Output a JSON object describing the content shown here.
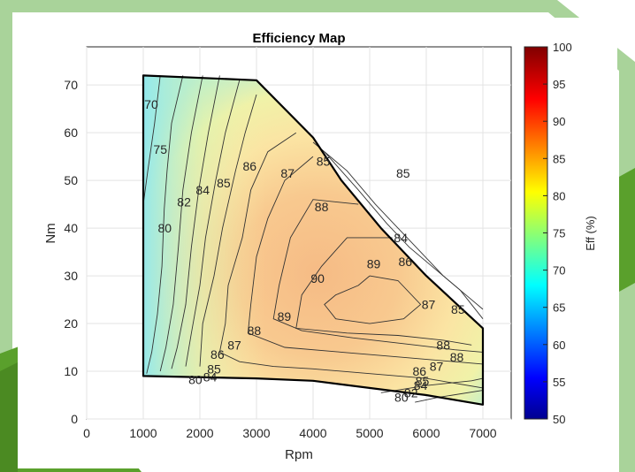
{
  "colors": {
    "frame_green": "#a9d39a",
    "accent_green": "#5aa02c",
    "boundary": "#000000",
    "contour": "#333333"
  },
  "chart_data": {
    "type": "heatmap",
    "title": "Efficiency Map",
    "xlabel": "Rpm",
    "ylabel": "Nm",
    "xlim": [
      0,
      7500
    ],
    "ylim": [
      0,
      78
    ],
    "xticks": [
      "0",
      "1000",
      "2000",
      "3000",
      "4000",
      "5000",
      "6000",
      "7000"
    ],
    "yticks": [
      "0",
      "10",
      "20",
      "30",
      "40",
      "50",
      "60",
      "70"
    ],
    "grid": true,
    "colorbar": {
      "label": "Eff (%)",
      "range": [
        50,
        100
      ],
      "ticks": [
        "50",
        "55",
        "60",
        "65",
        "70",
        "75",
        "80",
        "85",
        "90",
        "95",
        "100"
      ]
    },
    "operating_boundary": [
      [
        1000,
        72
      ],
      [
        3000,
        71
      ],
      [
        4000,
        59
      ],
      [
        4500,
        50
      ],
      [
        5200,
        40
      ],
      [
        6000,
        30
      ],
      [
        7000,
        19
      ],
      [
        7000,
        3
      ],
      [
        6000,
        5
      ],
      [
        4000,
        8
      ],
      [
        3000,
        8.5
      ],
      [
        1000,
        9
      ]
    ],
    "contour_labels": [
      {
        "text": "70",
        "x": 1140,
        "y": 66
      },
      {
        "text": "75",
        "x": 1300,
        "y": 56.5
      },
      {
        "text": "80",
        "x": 1380,
        "y": 40
      },
      {
        "text": "82",
        "x": 1720,
        "y": 45.5
      },
      {
        "text": "84",
        "x": 2050,
        "y": 48
      },
      {
        "text": "85",
        "x": 2420,
        "y": 49.5
      },
      {
        "text": "86",
        "x": 2880,
        "y": 53
      },
      {
        "text": "87",
        "x": 3550,
        "y": 51.5
      },
      {
        "text": "85",
        "x": 4180,
        "y": 54
      },
      {
        "text": "85",
        "x": 5590,
        "y": 51.5
      },
      {
        "text": "88",
        "x": 4150,
        "y": 44.5
      },
      {
        "text": "84",
        "x": 5550,
        "y": 38
      },
      {
        "text": "86",
        "x": 5630,
        "y": 33
      },
      {
        "text": "89",
        "x": 5070,
        "y": 32.5
      },
      {
        "text": "90",
        "x": 4080,
        "y": 29.5
      },
      {
        "text": "89",
        "x": 3490,
        "y": 21.5
      },
      {
        "text": "87",
        "x": 6040,
        "y": 24
      },
      {
        "text": "85",
        "x": 6560,
        "y": 23
      },
      {
        "text": "88",
        "x": 2960,
        "y": 18.5
      },
      {
        "text": "87",
        "x": 2610,
        "y": 15.5
      },
      {
        "text": "86",
        "x": 2310,
        "y": 13.5
      },
      {
        "text": "85",
        "x": 2250,
        "y": 10.5
      },
      {
        "text": "84",
        "x": 2180,
        "y": 8.8
      },
      {
        "text": "80",
        "x": 1920,
        "y": 8.2
      },
      {
        "text": "88",
        "x": 6300,
        "y": 15.5
      },
      {
        "text": "88",
        "x": 6540,
        "y": 13
      },
      {
        "text": "87",
        "x": 6180,
        "y": 11
      },
      {
        "text": "86",
        "x": 5880,
        "y": 10
      },
      {
        "text": "85",
        "x": 5930,
        "y": 8
      },
      {
        "text": "84",
        "x": 5900,
        "y": 7
      },
      {
        "text": "82",
        "x": 5730,
        "y": 5.5
      },
      {
        "text": "80",
        "x": 5560,
        "y": 4.5
      }
    ],
    "contour_lines": [
      [
        [
          1300,
          72
        ],
        [
          1200,
          62
        ],
        [
          1080,
          52
        ],
        [
          1000,
          45
        ]
      ],
      [
        [
          1700,
          72
        ],
        [
          1500,
          62
        ],
        [
          1420,
          52
        ],
        [
          1370,
          44
        ],
        [
          1330,
          32
        ],
        [
          1250,
          22
        ],
        [
          1150,
          14
        ],
        [
          1060,
          9.5
        ]
      ],
      [
        [
          2050,
          72
        ],
        [
          1850,
          60
        ],
        [
          1700,
          48
        ],
        [
          1620,
          36
        ],
        [
          1530,
          24
        ],
        [
          1400,
          15
        ],
        [
          1300,
          10
        ]
      ],
      [
        [
          2350,
          72
        ],
        [
          2150,
          60
        ],
        [
          1980,
          48
        ],
        [
          1850,
          36
        ],
        [
          1750,
          24
        ],
        [
          1600,
          15
        ],
        [
          1500,
          10.5
        ]
      ],
      [
        [
          2700,
          71
        ],
        [
          2450,
          60
        ],
        [
          2280,
          50
        ],
        [
          2100,
          38
        ],
        [
          2000,
          28
        ],
        [
          1850,
          18
        ],
        [
          1750,
          11
        ]
      ],
      [
        [
          3000,
          68
        ],
        [
          2800,
          60
        ],
        [
          2630,
          52
        ],
        [
          2400,
          40
        ],
        [
          2250,
          30
        ],
        [
          2050,
          20
        ],
        [
          2000,
          11
        ]
      ],
      [
        [
          3700,
          60
        ],
        [
          3200,
          56
        ],
        [
          2900,
          48
        ],
        [
          2750,
          38
        ],
        [
          2500,
          28
        ],
        [
          2450,
          20
        ],
        [
          2350,
          14
        ],
        [
          2700,
          12
        ],
        [
          3300,
          11
        ],
        [
          4000,
          10.5
        ],
        [
          5000,
          9.5
        ],
        [
          6000,
          8.5
        ],
        [
          7000,
          6.5
        ]
      ],
      [
        [
          4000,
          55
        ],
        [
          3500,
          50
        ],
        [
          3200,
          42
        ],
        [
          3000,
          34
        ],
        [
          2900,
          24
        ],
        [
          2850,
          18
        ],
        [
          3500,
          15
        ],
        [
          4500,
          14
        ],
        [
          5500,
          13
        ],
        [
          6500,
          12
        ],
        [
          7000,
          11.5
        ]
      ],
      [
        [
          4800,
          45
        ],
        [
          4000,
          46
        ],
        [
          3600,
          38
        ],
        [
          3400,
          28
        ],
        [
          3300,
          21
        ],
        [
          3800,
          18.5
        ],
        [
          4700,
          17
        ],
        [
          5800,
          15.5
        ],
        [
          6500,
          14.5
        ],
        [
          7000,
          14
        ]
      ],
      [
        [
          5400,
          38
        ],
        [
          4600,
          38
        ],
        [
          4150,
          32
        ],
        [
          3800,
          26
        ],
        [
          3700,
          19
        ],
        [
          4600,
          18
        ],
        [
          5500,
          17.5
        ],
        [
          6300,
          16.5
        ],
        [
          6800,
          15.5
        ]
      ],
      [
        [
          4000,
          58
        ],
        [
          4600,
          52
        ],
        [
          5100,
          45
        ],
        [
          5500,
          40
        ],
        [
          5900,
          35
        ],
        [
          6300,
          30
        ],
        [
          6700,
          26
        ],
        [
          7000,
          23
        ]
      ],
      [
        [
          4200,
          56
        ],
        [
          4800,
          48
        ],
        [
          5300,
          41
        ],
        [
          5700,
          36
        ],
        [
          6200,
          31
        ],
        [
          6600,
          27
        ],
        [
          7000,
          21
        ]
      ],
      [
        [
          5000,
          30
        ],
        [
          4800,
          28
        ],
        [
          4400,
          26
        ],
        [
          4200,
          24
        ],
        [
          4400,
          21
        ],
        [
          5000,
          20
        ],
        [
          5600,
          21
        ],
        [
          5900,
          24
        ],
        [
          5500,
          29
        ],
        [
          5000,
          30
        ]
      ],
      [
        [
          5800,
          3.5
        ],
        [
          6200,
          4.5
        ],
        [
          7000,
          6
        ]
      ],
      [
        [
          5200,
          5.5
        ],
        [
          6000,
          7
        ],
        [
          6800,
          8
        ],
        [
          7000,
          8.5
        ]
      ]
    ]
  }
}
